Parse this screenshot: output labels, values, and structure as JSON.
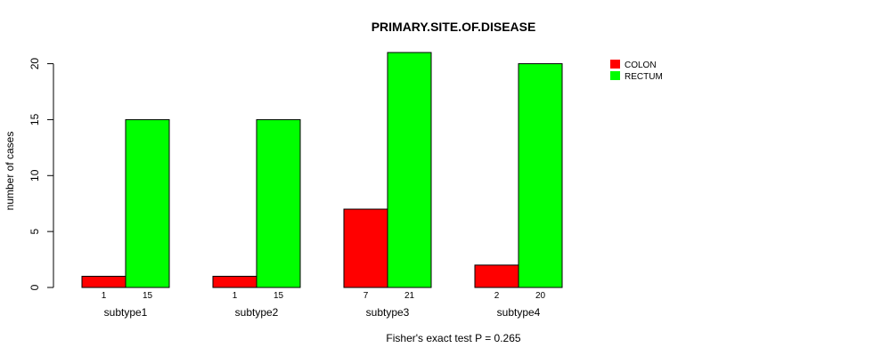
{
  "chart_data": {
    "type": "bar",
    "title": "PRIMARY.SITE.OF.DISEASE",
    "ylabel": "number of cases",
    "xlabel": "",
    "footnote": "Fisher's exact test P = 0.265",
    "categories": [
      "subtype1",
      "subtype2",
      "subtype3",
      "subtype4"
    ],
    "series": [
      {
        "name": "COLON",
        "color": "#ff0000",
        "values": [
          1,
          1,
          7,
          2
        ]
      },
      {
        "name": "RECTUM",
        "color": "#00ff00",
        "values": [
          15,
          15,
          21,
          20
        ]
      }
    ],
    "ylim": [
      0,
      21
    ],
    "yticks": [
      0,
      5,
      10,
      15,
      20
    ],
    "legend_position": "top-right"
  }
}
